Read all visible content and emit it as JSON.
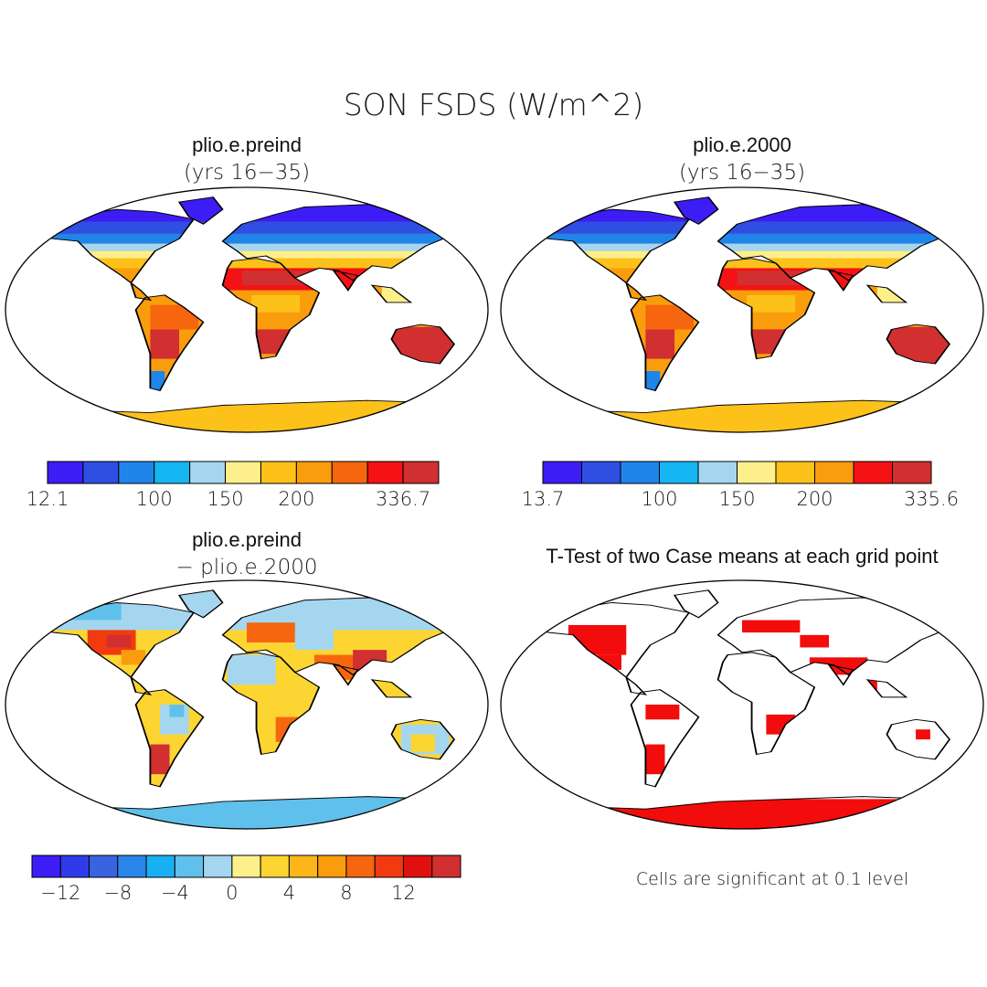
{
  "figure": {
    "main_title": "SON FSDS (W/m^2)"
  },
  "panels": [
    {
      "id": "preind",
      "title": "plio.e.preind",
      "subtitle": "(yrs 16−35)",
      "field": "absolute",
      "colorbar": {
        "colors": [
          "#3d1df5",
          "#2f4fe3",
          "#1f85ea",
          "#15b6f2",
          "#a5d6f0",
          "#fdf08a",
          "#fcc21a",
          "#fa9d0d",
          "#f5660f",
          "#f41214",
          "#d12f30"
        ],
        "tick_labels": [
          "12.1",
          "100",
          "150",
          "200",
          "336.7"
        ]
      }
    },
    {
      "id": "y2000",
      "title": "plio.e.2000",
      "subtitle": "(yrs 16−35)",
      "field": "absolute",
      "colorbar": {
        "colors": [
          "#3d1df5",
          "#2f4fe3",
          "#1f85ea",
          "#15b6f2",
          "#a5d6f0",
          "#fdf08a",
          "#fcc21a",
          "#fa9d0d",
          "#f41214",
          "#d12f30"
        ],
        "tick_labels": [
          "13.7",
          "100",
          "150",
          "200",
          "335.6"
        ]
      }
    },
    {
      "id": "diff",
      "title": "plio.e.preind",
      "subtitle": "− plio.e.2000",
      "field": "difference",
      "colorbar": {
        "colors": [
          "#3d1df5",
          "#2f3be8",
          "#3a63e0",
          "#2a86ea",
          "#18b0f2",
          "#60c0ec",
          "#a5d6f0",
          "#fdf08a",
          "#fdd533",
          "#fcb61a",
          "#fa9d0d",
          "#f5660f",
          "#f23a10",
          "#e01010",
          "#d12f30"
        ],
        "tick_labels": [
          "−12",
          "−8",
          "−4",
          "0",
          "4",
          "8",
          "12"
        ]
      }
    },
    {
      "id": "ttest",
      "title": "T-Test of two Case means at each grid point",
      "field": "significance",
      "note": "Cells are significant at 0.1 level",
      "significant_color": "#f20c0c"
    }
  ]
}
